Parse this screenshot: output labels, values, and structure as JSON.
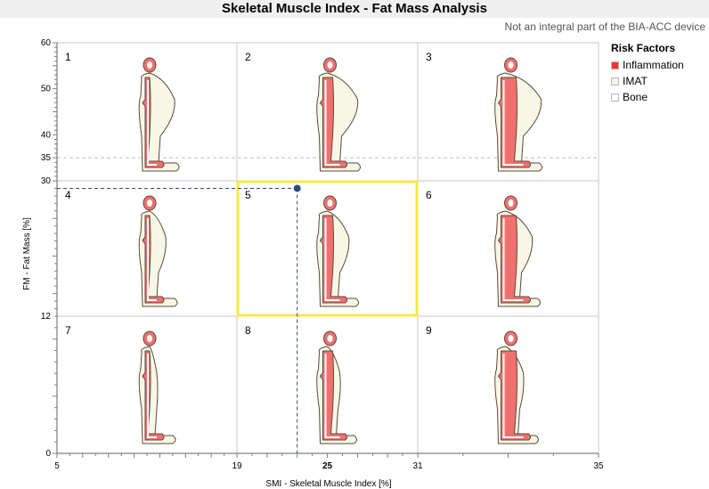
{
  "title": "Skeletal Muscle Index - Fat Mass Analysis",
  "disclaimer": "Not an integral part of the BIA-ACC device",
  "legend": {
    "title": "Risk Factors",
    "items": [
      {
        "label": "Inflammation",
        "color": "#ff3333",
        "checked": true
      },
      {
        "label": "IMAT",
        "color": "#f5f5e8",
        "checked": false
      },
      {
        "label": "Bone",
        "color": "#ffffff",
        "checked": false
      }
    ]
  },
  "chart_data": {
    "type": "scatter",
    "xlabel": "SMI - Skeletal Muscle Index [%]",
    "ylabel": "FM - Fat Mass [%]",
    "xlim": [
      5,
      35
    ],
    "ylim": [
      0,
      60
    ],
    "x_ticks": [
      "5",
      "19",
      "25",
      "31",
      "35"
    ],
    "x_tick_values": [
      5,
      19,
      25,
      31,
      35
    ],
    "y_ticks": [
      "0",
      "12",
      "30",
      "35",
      "40",
      "50",
      "60"
    ],
    "y_tick_values": [
      0,
      12,
      30,
      35,
      40,
      50,
      60
    ],
    "x_boundaries": [
      19,
      31
    ],
    "y_boundaries": [
      12,
      30
    ],
    "reference_line_y": 35,
    "point": {
      "x": 23,
      "y": 29
    },
    "highlighted_cell": 5,
    "cells": [
      "1",
      "2",
      "3",
      "4",
      "5",
      "6",
      "7",
      "8",
      "9"
    ],
    "grid": true,
    "legend_position": "right",
    "colors": {
      "point": "#2c4e7a",
      "highlight": "#f7e84a",
      "muscle": "#f07070",
      "fat": "#f8f6e6",
      "outline": "#5a4a3a"
    }
  }
}
